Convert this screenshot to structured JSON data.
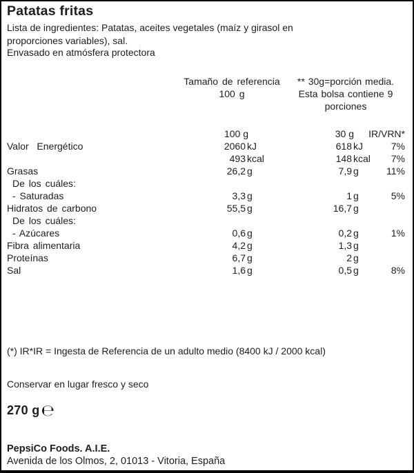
{
  "product": {
    "title": "Patatas fritas",
    "ingredients_lines": [
      "Lista de ingredientes: Patatas, aceites vegetales (maíz y girasol en",
      "proporciones variables), sal."
    ],
    "packaging_note": "Envasado en atmósfera protectora"
  },
  "nutrition_table": {
    "reference_header_lines": [
      "Tamaño de referencia",
      "100 g"
    ],
    "portion_header_lines": [
      "** 30g=porción media.",
      "Esta bolsa contiene 9",
      "porciones"
    ],
    "columns": {
      "per100": "100 g",
      "per30": "30 g",
      "ir": "IR/VRN*"
    },
    "rows": [
      {
        "label": "Valor  Energético",
        "indent": false,
        "v100": "2060",
        "u100": "kJ",
        "v30": "618",
        "u30": "kJ",
        "ir": "7%"
      },
      {
        "label": "",
        "indent": false,
        "v100": "493",
        "u100": "kcal",
        "v30": "148",
        "u30": "kcal",
        "ir": "7%"
      },
      {
        "label": "Grasas",
        "indent": false,
        "v100": "26,2",
        "u100": "g",
        "v30": "7,9",
        "u30": "g",
        "ir": "11%"
      },
      {
        "label": "De los cuáles:",
        "indent": true,
        "v100": "",
        "u100": "",
        "v30": "",
        "u30": "",
        "ir": ""
      },
      {
        "label": "- Saturadas",
        "indent": true,
        "v100": "3,3",
        "u100": "g",
        "v30": "1",
        "u30": "g",
        "ir": "5%"
      },
      {
        "label": "Hidratos de carbono",
        "indent": false,
        "v100": "55,5",
        "u100": "g",
        "v30": "16,7",
        "u30": "g",
        "ir": ""
      },
      {
        "label": "De los cuáles:",
        "indent": true,
        "v100": "",
        "u100": "",
        "v30": "",
        "u30": "",
        "ir": ""
      },
      {
        "label": "- Azúcares",
        "indent": true,
        "v100": "0,6",
        "u100": "g",
        "v30": "0,2",
        "u30": "g",
        "ir": "1%"
      },
      {
        "label": "Fibra alimentaria",
        "indent": false,
        "v100": "4,2",
        "u100": "g",
        "v30": "1,3",
        "u30": "g",
        "ir": ""
      },
      {
        "label": "Proteínas",
        "indent": false,
        "v100": "6,7",
        "u100": "g",
        "v30": "2",
        "u30": "g",
        "ir": ""
      },
      {
        "label": "Sal",
        "indent": false,
        "v100": "1,6",
        "u100": "g",
        "v30": "0,5",
        "u30": "g",
        "ir": "8%"
      }
    ]
  },
  "notes": {
    "reference_note": "(*) IR*IR = Ingesta de Referencia de un adulto medio (8400 kJ / 2000 kcal)",
    "storage_note": "Conservar en lugar fresco y seco",
    "net_weight": "270 g",
    "estimated_sign": "℮"
  },
  "manufacturer": {
    "name": "PepsiCo Foods. A.I.E.",
    "address": "Avenida de los Olmos, 2, 01013 - Vitoria, España"
  }
}
